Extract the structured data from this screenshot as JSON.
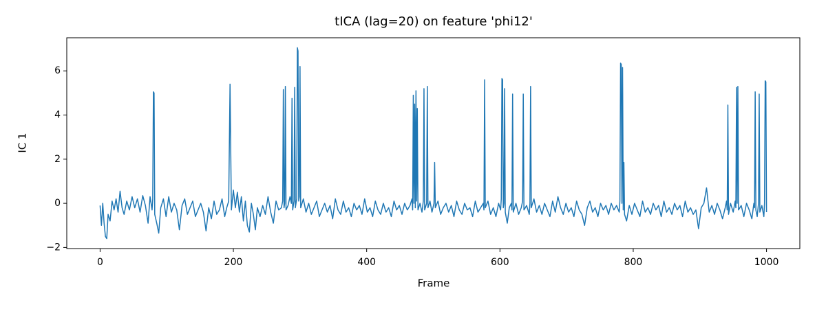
{
  "chart_data": {
    "type": "line",
    "title": "tICA (lag=20) on feature 'phi12'",
    "xlabel": "Frame",
    "ylabel": "IC 1",
    "xlim": [
      -50,
      1050
    ],
    "ylim": [
      -2.05,
      7.5
    ],
    "xticks": [
      0,
      200,
      400,
      600,
      800,
      1000
    ],
    "yticks": [
      {
        "value": -2,
        "label": "−2"
      },
      0,
      2,
      4,
      6
    ],
    "grid": false,
    "series": [
      {
        "color": "#1f77b4",
        "x": [
          0,
          2,
          4,
          6,
          8,
          10,
          12,
          15,
          18,
          21,
          24,
          27,
          30,
          33,
          36,
          40,
          44,
          48,
          52,
          56,
          60,
          64,
          68,
          72,
          75,
          78,
          79,
          80,
          81,
          82,
          85,
          88,
          91,
          95,
          99,
          103,
          107,
          111,
          115,
          119,
          123,
          127,
          131,
          135,
          139,
          143,
          147,
          151,
          155,
          159,
          163,
          167,
          171,
          175,
          179,
          183,
          187,
          190,
          193,
          195,
          197,
          200,
          203,
          206,
          209,
          212,
          215,
          218,
          221,
          224,
          227,
          230,
          233,
          236,
          240,
          244,
          248,
          252,
          256,
          260,
          264,
          268,
          272,
          274,
          275,
          276,
          277,
          278,
          279,
          282,
          285,
          287,
          288,
          289,
          291,
          292,
          293,
          295,
          296,
          297,
          298,
          299,
          300,
          301,
          305,
          309,
          313,
          317,
          321,
          325,
          329,
          333,
          337,
          341,
          345,
          349,
          353,
          357,
          361,
          365,
          369,
          373,
          377,
          381,
          385,
          389,
          393,
          397,
          401,
          405,
          409,
          413,
          417,
          421,
          425,
          429,
          433,
          437,
          441,
          445,
          449,
          453,
          457,
          461,
          465,
          468,
          469,
          470,
          471,
          472,
          473,
          474,
          475,
          476,
          477,
          480,
          483,
          485,
          486,
          487,
          490,
          491,
          492,
          495,
          498,
          501,
          502,
          503,
          507,
          511,
          515,
          519,
          523,
          527,
          531,
          535,
          539,
          543,
          547,
          551,
          555,
          559,
          563,
          567,
          571,
          575,
          576,
          577,
          578,
          582,
          586,
          590,
          594,
          598,
          601,
          602,
          603,
          604,
          605,
          606,
          607,
          608,
          611,
          614,
          617,
          618,
          619,
          620,
          624,
          628,
          632,
          634,
          635,
          636,
          640,
          644,
          645,
          646,
          647,
          651,
          655,
          659,
          663,
          667,
          671,
          675,
          679,
          683,
          687,
          691,
          695,
          699,
          703,
          707,
          711,
          715,
          719,
          723,
          727,
          731,
          735,
          739,
          743,
          747,
          751,
          755,
          759,
          763,
          767,
          771,
          775,
          779,
          780,
          781,
          782,
          783,
          784,
          785,
          786,
          787,
          790,
          794,
          798,
          802,
          806,
          810,
          814,
          818,
          822,
          826,
          830,
          834,
          838,
          842,
          846,
          850,
          854,
          858,
          862,
          866,
          870,
          874,
          878,
          882,
          886,
          890,
          894,
          898,
          902,
          906,
          910,
          914,
          918,
          922,
          926,
          930,
          934,
          938,
          940,
          941,
          942,
          943,
          946,
          950,
          953,
          954,
          955,
          956,
          957,
          958,
          962,
          966,
          970,
          974,
          978,
          981,
          982,
          983,
          984,
          986,
          988,
          989,
          990,
          993,
          996,
          997,
          998,
          999,
          1000
        ],
        "values": [
          -0.1,
          -1.0,
          0.0,
          -0.9,
          -1.5,
          -1.6,
          -0.5,
          -0.8,
          0.1,
          -0.3,
          0.2,
          -0.4,
          0.55,
          -0.2,
          -0.5,
          0.1,
          -0.3,
          0.3,
          -0.2,
          0.2,
          -0.4,
          0.35,
          -0.1,
          -0.9,
          0.3,
          -0.3,
          0.2,
          5.05,
          5.0,
          -0.5,
          -0.9,
          -1.35,
          -0.2,
          0.2,
          -0.6,
          0.3,
          -0.4,
          0.0,
          -0.3,
          -1.2,
          -0.1,
          0.2,
          -0.5,
          -0.2,
          0.1,
          -0.6,
          -0.3,
          0.0,
          -0.4,
          -1.25,
          -0.2,
          -0.7,
          0.1,
          -0.5,
          -0.3,
          0.2,
          -0.6,
          -0.2,
          0.1,
          5.4,
          -0.3,
          0.6,
          -0.2,
          0.5,
          -0.4,
          0.3,
          -0.8,
          0.1,
          -1.0,
          -1.3,
          0.0,
          -0.5,
          -1.2,
          -0.2,
          -0.6,
          -0.1,
          -0.5,
          0.3,
          -0.4,
          -0.9,
          0.1,
          -0.3,
          -0.2,
          0.1,
          5.15,
          -0.2,
          0.0,
          5.3,
          -0.3,
          -0.1,
          0.3,
          0.0,
          4.75,
          -0.3,
          0.1,
          5.25,
          -0.2,
          0.2,
          7.05,
          6.9,
          0.1,
          0.3,
          6.2,
          -0.2,
          0.2,
          -0.4,
          0.0,
          -0.5,
          -0.2,
          0.1,
          -0.6,
          -0.3,
          0.0,
          -0.4,
          -0.1,
          -0.7,
          0.2,
          -0.3,
          -0.5,
          0.1,
          -0.4,
          -0.2,
          -0.6,
          0.0,
          -0.3,
          -0.1,
          -0.5,
          0.2,
          -0.4,
          -0.2,
          -0.6,
          0.1,
          -0.3,
          -0.5,
          0.0,
          -0.4,
          -0.2,
          -0.6,
          0.1,
          -0.3,
          -0.1,
          -0.5,
          0.0,
          -0.3,
          -0.1,
          0.2,
          -0.3,
          4.9,
          0.0,
          4.5,
          -0.2,
          5.1,
          0.1,
          4.3,
          -0.3,
          0.0,
          -0.4,
          0.1,
          5.2,
          -0.3,
          0.0,
          5.3,
          -0.2,
          0.1,
          -0.4,
          0.0,
          1.85,
          -0.2,
          0.1,
          -0.5,
          -0.2,
          0.0,
          -0.4,
          -0.1,
          -0.6,
          0.1,
          -0.3,
          -0.5,
          0.0,
          -0.3,
          -0.2,
          -0.6,
          0.1,
          -0.4,
          -0.2,
          0.0,
          -0.3,
          5.6,
          -0.2,
          0.1,
          -0.5,
          -0.2,
          -0.6,
          0.0,
          -0.3,
          0.2,
          5.65,
          5.6,
          -0.2,
          0.0,
          5.2,
          -0.4,
          -0.9,
          -0.2,
          0.0,
          -0.3,
          4.95,
          -0.4,
          0.0,
          -0.5,
          -0.2,
          0.1,
          4.95,
          -0.3,
          -0.1,
          -0.5,
          0.0,
          5.3,
          -0.2,
          0.2,
          -0.4,
          -0.1,
          -0.5,
          0.0,
          -0.3,
          -0.6,
          0.1,
          -0.4,
          0.3,
          -0.2,
          -0.5,
          0.0,
          -0.4,
          -0.2,
          -0.6,
          0.1,
          -0.3,
          -0.5,
          -1.0,
          -0.2,
          0.1,
          -0.4,
          -0.2,
          -0.6,
          0.0,
          -0.3,
          -0.1,
          -0.5,
          0.0,
          -0.3,
          -0.1,
          -0.4,
          0.1,
          6.35,
          6.3,
          0.0,
          6.15,
          -0.3,
          1.85,
          -0.5,
          -0.8,
          -0.1,
          -0.5,
          0.0,
          -0.3,
          -0.6,
          0.1,
          -0.4,
          -0.2,
          -0.5,
          0.0,
          -0.3,
          -0.1,
          -0.6,
          0.1,
          -0.4,
          -0.2,
          -0.5,
          0.0,
          -0.3,
          -0.1,
          -0.6,
          0.1,
          -0.4,
          -0.2,
          -0.5,
          -0.3,
          -1.15,
          -0.2,
          0.0,
          0.7,
          -0.4,
          -0.1,
          -0.5,
          0.0,
          -0.3,
          -0.7,
          -0.2,
          0.1,
          -0.3,
          4.45,
          -0.5,
          0.0,
          -0.4,
          0.1,
          -0.2,
          5.25,
          0.0,
          5.3,
          -0.3,
          -0.1,
          -0.6,
          0.0,
          -0.3,
          -0.7,
          0.0,
          -0.2,
          5.05,
          -0.3,
          -0.6,
          0.0,
          4.95,
          -0.4,
          -0.1,
          -0.6,
          0.0,
          5.55,
          5.5,
          -0.4
        ]
      }
    ]
  }
}
